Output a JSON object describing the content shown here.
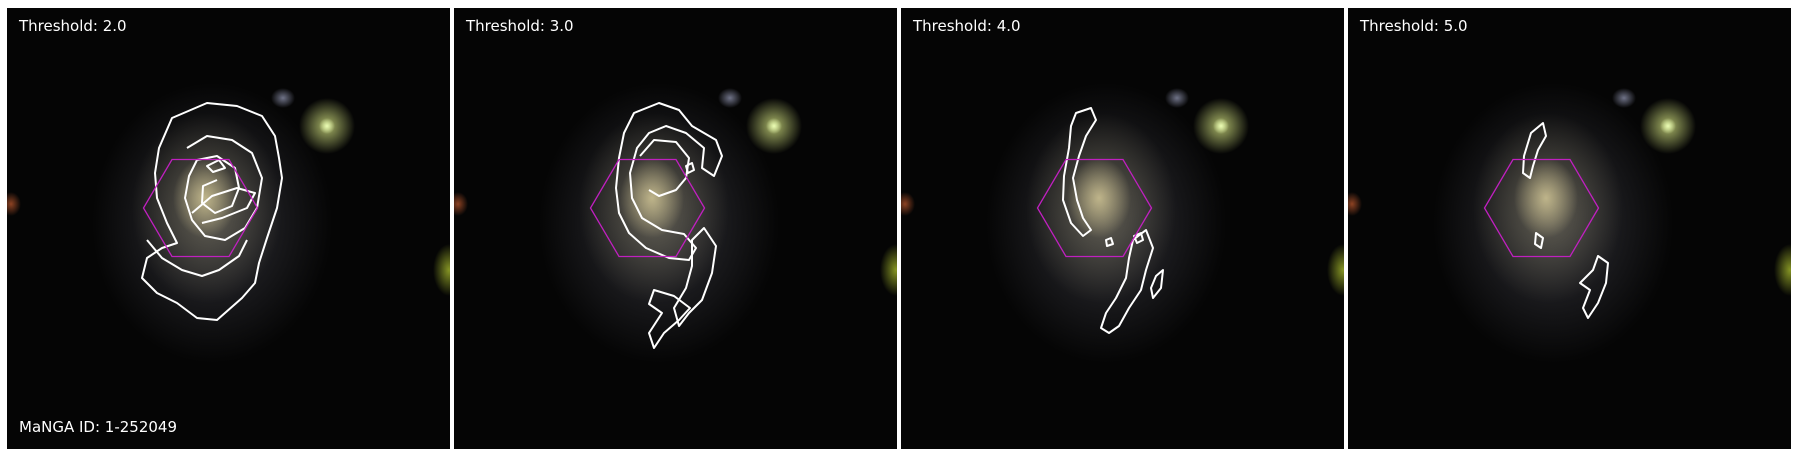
{
  "figure": {
    "manga_id": "MaNGA ID: 1-252049",
    "panels": [
      {
        "label": "Threshold: 2.0",
        "threshold": 2.0
      },
      {
        "label": "Threshold: 3.0",
        "threshold": 3.0
      },
      {
        "label": "Threshold: 4.0",
        "threshold": 4.0
      },
      {
        "label": "Threshold: 5.0",
        "threshold": 5.0
      }
    ]
  },
  "colors": {
    "background": "#050505",
    "contour": "#ffffff",
    "ifu_hexagon": "#c020c0",
    "galaxy_core": "#d8cc9a",
    "star_green": "#eafcb4"
  }
}
